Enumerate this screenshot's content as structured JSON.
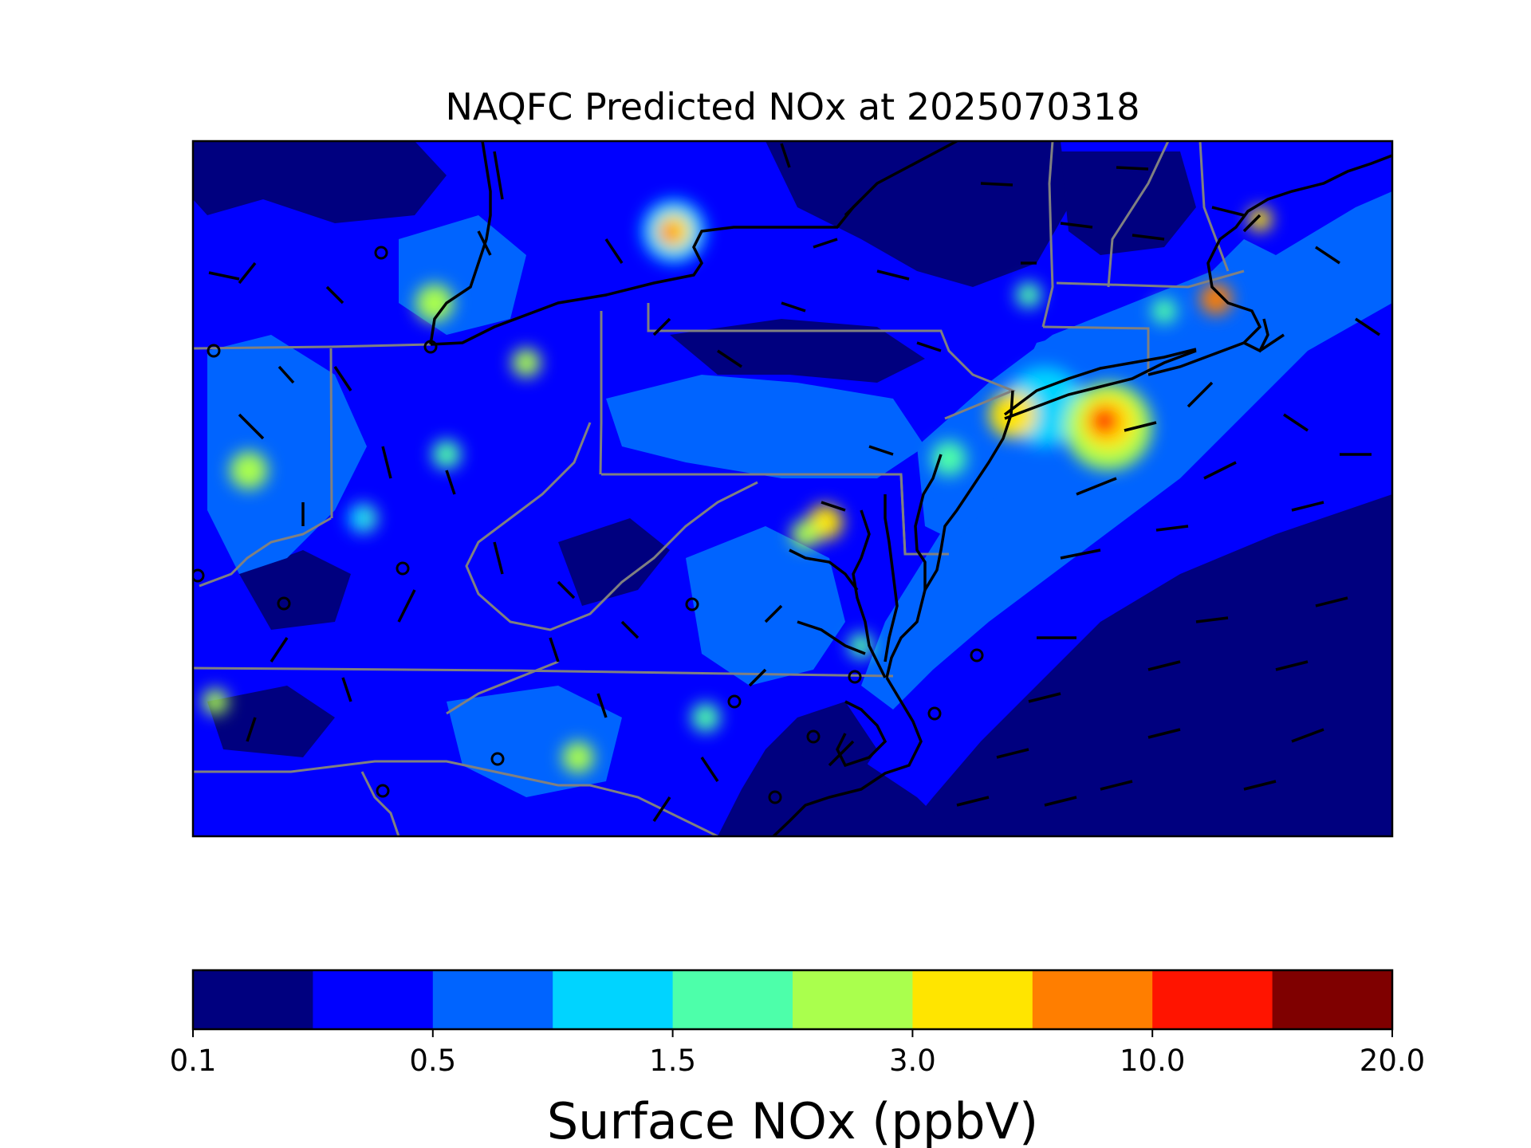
{
  "title": "NAQFC Predicted NOx at 2025070318",
  "colorbar": {
    "label": "Surface NOx (ppbV)",
    "tick_labels": [
      "0.1",
      "0.5",
      "1.5",
      "3.0",
      "10.0",
      "20.0"
    ],
    "colors": [
      "#00007f",
      "#0000ff",
      "#0064ff",
      "#00d4ff",
      "#4dffaa",
      "#aaff4d",
      "#ffe500",
      "#ff7e00",
      "#ff1400",
      "#7f0000"
    ]
  },
  "map": {
    "field": "Surface NOx (ppbV)",
    "region": "Mid-Atlantic / Northeast United States",
    "background_level_color": "#0000ff",
    "state_border_color": "#808080",
    "coastline_color": "#000000",
    "overlays": [
      "wind-barbs",
      "calm-wind-circles"
    ]
  }
}
